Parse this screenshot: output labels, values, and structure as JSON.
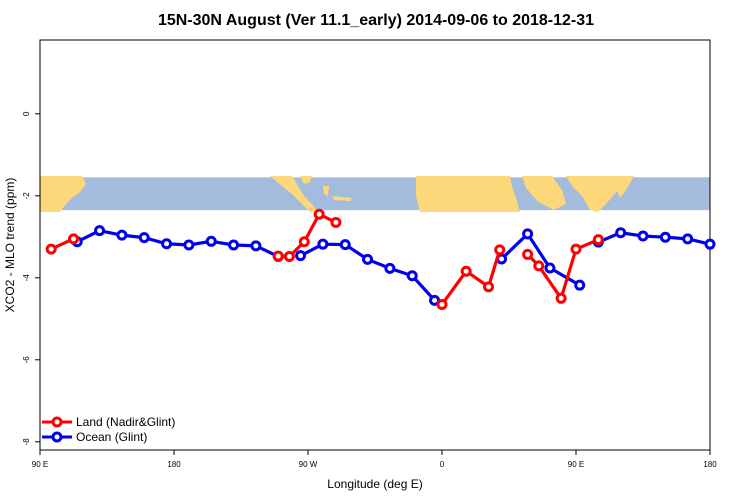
{
  "chart_data": {
    "type": "line",
    "title": "15N-30N August (Ver 11.1_early)   2014-09-06 to 2018-12-31",
    "xlabel": "Longitude (deg E)",
    "ylabel": "XCO2 - MLO trend (ppm)",
    "xlim": [
      -180,
      180
    ],
    "ylim": [
      -8.2,
      1.8
    ],
    "x_ticks": [
      {
        "value": -180,
        "label": "90 E"
      },
      {
        "value": -108,
        "label": "180"
      },
      {
        "value": -36,
        "label": "90 W"
      },
      {
        "value": 36,
        "label": "0"
      },
      {
        "value": 108,
        "label": "90 E"
      },
      {
        "value": 180,
        "label": "180"
      }
    ],
    "y_ticks": [
      {
        "value": 0,
        "label": "0"
      },
      {
        "value": -2,
        "label": "-2"
      },
      {
        "value": -4,
        "label": "-4"
      },
      {
        "value": -6,
        "label": "-6"
      },
      {
        "value": -8,
        "label": "-8"
      }
    ],
    "map_band": {
      "y_top": -1.55,
      "y_bottom": -2.35,
      "ocean_color": "#a3bbdc",
      "land_color": "#fcd87a"
    },
    "legend": {
      "position": "bottom-left"
    },
    "series": [
      {
        "name": "Ocean (Glint)",
        "color": "#0000ee",
        "segments": [
          {
            "x": [
              -160,
              -148,
              -136,
              -124,
              -112,
              -100,
              -88,
              -76,
              -64,
              -52
            ],
            "y": [
              -3.12,
              -2.85,
              -2.96,
              -3.02,
              -3.17,
              -3.2,
              -3.11,
              -3.2,
              -3.22,
              -3.48
            ]
          },
          {
            "x": [
              -40,
              -28,
              -16,
              -4,
              8,
              20,
              32
            ],
            "y": [
              -3.46,
              -3.18,
              -3.19,
              -3.55,
              -3.77,
              -3.95,
              -4.55
            ]
          },
          {
            "x": [
              68,
              82,
              94,
              110
            ],
            "y": [
              -3.54,
              -2.93,
              -3.76,
              -4.18
            ]
          },
          {
            "x": [
              120,
              132,
              144,
              156,
              168,
              180
            ],
            "y": [
              -3.13,
              -2.9,
              -2.98,
              -3.01,
              -3.05,
              -3.18
            ]
          }
        ]
      },
      {
        "name": "Land (Nadir&Glint)",
        "color": "#ff0000",
        "segments": [
          {
            "x": [
              -174,
              -162
            ],
            "y": [
              -3.3,
              -3.05
            ]
          },
          {
            "x": [
              -52,
              -46,
              -38,
              -30,
              -21
            ],
            "y": [
              -3.47,
              -3.48,
              -3.12,
              -2.45,
              -2.65
            ]
          },
          {
            "x": [
              36,
              49,
              61,
              67
            ],
            "y": [
              -4.65,
              -3.84,
              -4.22,
              -3.32
            ]
          },
          {
            "x": [
              82,
              88,
              100,
              108,
              120
            ],
            "y": [
              -3.43,
              -3.71,
              -4.5,
              -3.3,
              -3.07
            ]
          }
        ]
      }
    ]
  }
}
